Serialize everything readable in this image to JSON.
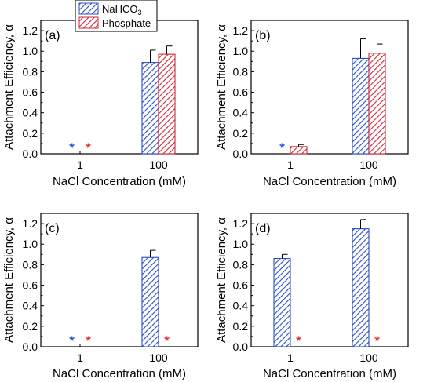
{
  "legend": {
    "items": [
      {
        "label": "NaHCO",
        "subscript": "3",
        "color": "#2b4fbf",
        "pattern": "hatch-blue"
      },
      {
        "label": "Phosphate",
        "subscript": "",
        "color": "#cc2b3a",
        "pattern": "hatch-red"
      }
    ]
  },
  "colors": {
    "nahco3": "#2b4fbf",
    "phosphate": "#cc2b3a",
    "star_blue": "#2b5bd7",
    "star_red": "#e8323c"
  },
  "chart_data": [
    {
      "type": "bar",
      "panel_label": "(a)",
      "categories": [
        "1",
        "100"
      ],
      "series": [
        {
          "name": "NaHCO3",
          "values": [
            null,
            0.89
          ],
          "errors": [
            null,
            0.12
          ]
        },
        {
          "name": "Phosphate",
          "values": [
            null,
            0.97
          ],
          "errors": [
            null,
            0.08
          ]
        }
      ],
      "markers": [
        {
          "category": "1",
          "series": "NaHCO3",
          "symbol": "*"
        },
        {
          "category": "1",
          "series": "Phosphate",
          "symbol": "*"
        }
      ],
      "xlabel": "NaCl Concentration (mM)",
      "ylabel": "Attachment Efficiency, α",
      "ylim": [
        0,
        1.3
      ],
      "yticks": [
        "0.0",
        "0.2",
        "0.4",
        "0.6",
        "0.8",
        "1.0",
        "1.2"
      ]
    },
    {
      "type": "bar",
      "panel_label": "(b)",
      "categories": [
        "1",
        "100"
      ],
      "series": [
        {
          "name": "NaHCO3",
          "values": [
            null,
            0.93
          ],
          "errors": [
            null,
            0.19
          ]
        },
        {
          "name": "Phosphate",
          "values": [
            0.07,
            0.98
          ],
          "errors": [
            0.02,
            0.09
          ]
        }
      ],
      "markers": [
        {
          "category": "1",
          "series": "NaHCO3",
          "symbol": "*"
        }
      ],
      "xlabel": "NaCl Concentration (mM)",
      "ylabel": "Attachment Efficiency, α",
      "ylim": [
        0,
        1.3
      ],
      "yticks": [
        "0.0",
        "0.2",
        "0.4",
        "0.6",
        "0.8",
        "1.0",
        "1.2"
      ]
    },
    {
      "type": "bar",
      "panel_label": "(c)",
      "categories": [
        "1",
        "100"
      ],
      "series": [
        {
          "name": "NaHCO3",
          "values": [
            null,
            0.87
          ],
          "errors": [
            null,
            0.07
          ]
        },
        {
          "name": "Phosphate",
          "values": [
            null,
            null
          ],
          "errors": [
            null,
            null
          ]
        }
      ],
      "markers": [
        {
          "category": "1",
          "series": "NaHCO3",
          "symbol": "*"
        },
        {
          "category": "1",
          "series": "Phosphate",
          "symbol": "*"
        },
        {
          "category": "100",
          "series": "Phosphate",
          "symbol": "*"
        }
      ],
      "xlabel": "NaCl Concentration (mM)",
      "ylabel": "Attachment Efficiency, α",
      "ylim": [
        0,
        1.3
      ],
      "yticks": [
        "0.0",
        "0.2",
        "0.4",
        "0.6",
        "0.8",
        "1.0",
        "1.2"
      ]
    },
    {
      "type": "bar",
      "panel_label": "(d)",
      "categories": [
        "1",
        "100"
      ],
      "series": [
        {
          "name": "NaHCO3",
          "values": [
            0.86,
            1.15
          ],
          "errors": [
            0.04,
            0.09
          ]
        },
        {
          "name": "Phosphate",
          "values": [
            null,
            null
          ],
          "errors": [
            null,
            null
          ]
        }
      ],
      "markers": [
        {
          "category": "1",
          "series": "Phosphate",
          "symbol": "*"
        },
        {
          "category": "100",
          "series": "Phosphate",
          "symbol": "*"
        }
      ],
      "xlabel": "NaCl Concentration (mM)",
      "ylabel": "Attachment Efficiency, α",
      "ylim": [
        0,
        1.3
      ],
      "yticks": [
        "0.0",
        "0.2",
        "0.4",
        "0.6",
        "0.8",
        "1.0",
        "1.2"
      ]
    }
  ]
}
